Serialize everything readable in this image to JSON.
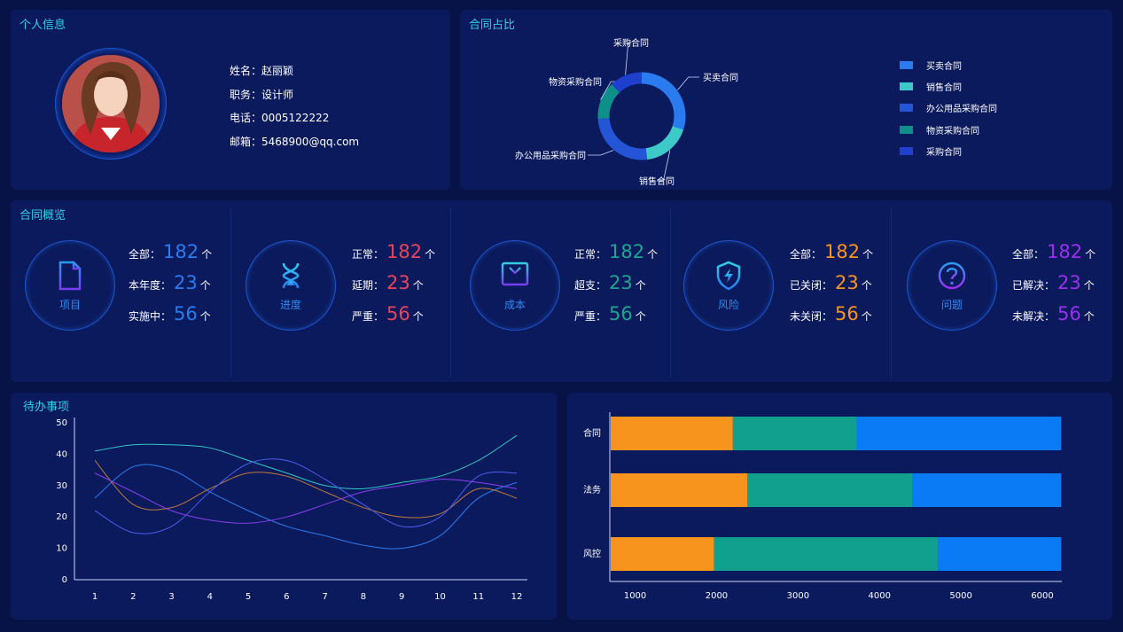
{
  "personal": {
    "title": "个人信息",
    "rows": [
      "姓名：赵丽颖",
      "职务：设计师",
      "电话：0005122222",
      "邮箱：5468900@qq.com"
    ]
  },
  "contract_share": {
    "title": "合同占比",
    "legend": [
      {
        "label": "买卖合同",
        "color": "#2a7bf0"
      },
      {
        "label": "销售合同",
        "color": "#3ec9c9"
      },
      {
        "label": "办公用品采购合同",
        "color": "#2455d6"
      },
      {
        "label": "物资采购合同",
        "color": "#0f8f8a"
      },
      {
        "label": "采购合同",
        "color": "#1f3fcf"
      }
    ],
    "slices": [
      {
        "label": "买卖合同",
        "value": 30
      },
      {
        "label": "销售合同",
        "value": 18
      },
      {
        "label": "办公用品采购合同",
        "value": 26
      },
      {
        "label": "物资采购合同",
        "value": 14
      },
      {
        "label": "采购合同",
        "value": 12
      }
    ]
  },
  "overview": {
    "title": "合同概览",
    "cards": [
      {
        "label": "项目",
        "icon": "document-icon",
        "color": "#2a7bf0",
        "stats": [
          {
            "k": "全部：",
            "v": "182",
            "u": "个"
          },
          {
            "k": "本年度：",
            "v": "23",
            "u": "个"
          },
          {
            "k": "实施中：",
            "v": "56",
            "u": "个"
          }
        ]
      },
      {
        "label": "进度",
        "icon": "hourglass-icon",
        "color": "#e8445f",
        "stats": [
          {
            "k": "正常：",
            "v": "182",
            "u": "个"
          },
          {
            "k": "延期：",
            "v": "23",
            "u": "个"
          },
          {
            "k": "严重：",
            "v": "56",
            "u": "个"
          }
        ]
      },
      {
        "label": "成本",
        "icon": "yuan-icon",
        "color": "#1fa392",
        "stats": [
          {
            "k": "正常：",
            "v": "182",
            "u": "个"
          },
          {
            "k": "超支：",
            "v": "23",
            "u": "个"
          },
          {
            "k": "严重：",
            "v": "56",
            "u": "个"
          }
        ]
      },
      {
        "label": "风险",
        "icon": "shield-icon",
        "color": "#f7941d",
        "stats": [
          {
            "k": "全部：",
            "v": "182",
            "u": "个"
          },
          {
            "k": "已关闭：",
            "v": "23",
            "u": "个"
          },
          {
            "k": "未关闭：",
            "v": "56",
            "u": "个"
          }
        ]
      },
      {
        "label": "问题",
        "icon": "question-icon",
        "color": "#9b2ff0",
        "stats": [
          {
            "k": "全部：",
            "v": "182",
            "u": "个"
          },
          {
            "k": "已解决：",
            "v": "23",
            "u": "个"
          },
          {
            "k": "未解决：",
            "v": "56",
            "u": "个"
          }
        ]
      }
    ]
  },
  "todo": {
    "title": "待办事项"
  },
  "chart_data": [
    {
      "type": "line",
      "x": [
        1,
        2,
        3,
        4,
        5,
        6,
        7,
        8,
        9,
        10,
        11,
        12
      ],
      "ylim": [
        0,
        50
      ],
      "yticks": [
        0,
        10,
        20,
        30,
        40,
        50
      ],
      "series": [
        {
          "color": "#2fc6c6",
          "values": [
            41,
            43,
            43,
            42,
            38,
            34,
            30,
            29,
            31,
            33,
            38,
            46
          ]
        },
        {
          "color": "#2a7bf0",
          "values": [
            26,
            36,
            35,
            28,
            22,
            17,
            14,
            11,
            10,
            14,
            26,
            31
          ]
        },
        {
          "color": "#c07a3a",
          "values": [
            38,
            24,
            23,
            29,
            34,
            33,
            28,
            23,
            20,
            21,
            29,
            26
          ]
        },
        {
          "color": "#8a3ef0",
          "values": [
            34,
            28,
            22,
            19,
            18,
            20,
            24,
            28,
            30,
            32,
            31,
            29
          ]
        },
        {
          "color": "#4a5df0",
          "values": [
            22,
            15,
            17,
            28,
            37,
            38,
            32,
            24,
            17,
            20,
            33,
            34
          ]
        }
      ]
    },
    {
      "type": "bar",
      "orientation": "horizontal",
      "stacked": true,
      "categories": [
        "合同",
        "法务",
        "风控"
      ],
      "xlim": [
        700,
        6250
      ],
      "xticks": [
        1000,
        2000,
        3000,
        4000,
        5000,
        6000
      ],
      "series": [
        {
          "color": "#f7941d",
          "segments": [
            [
              700,
              2200
            ],
            [
              700,
              2380
            ],
            [
              700,
              1970
            ]
          ]
        },
        {
          "color": "#12a08e",
          "segments": [
            [
              2200,
              3720
            ],
            [
              2380,
              4400
            ],
            [
              1970,
              4720
            ]
          ]
        },
        {
          "color": "#0a7bf5",
          "segments": [
            [
              3720,
              6230
            ],
            [
              4400,
              6230
            ],
            [
              4720,
              6230
            ]
          ]
        }
      ]
    }
  ]
}
